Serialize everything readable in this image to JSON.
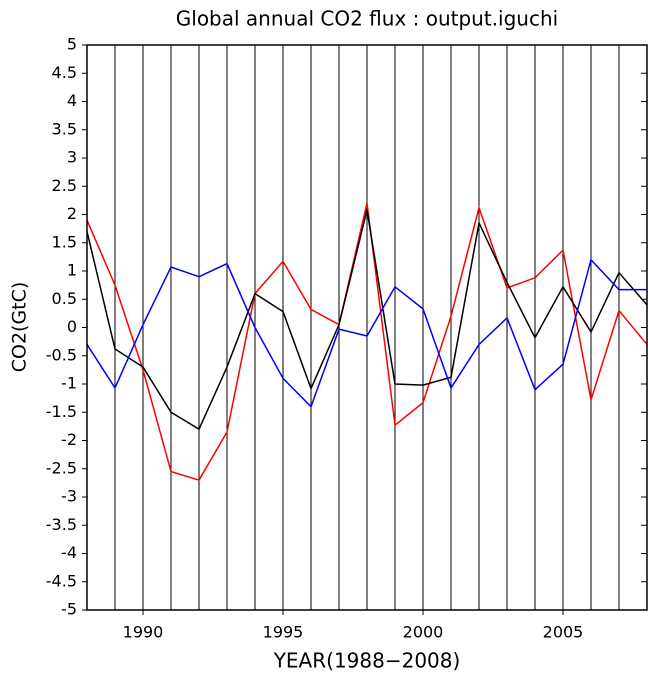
{
  "chart_data": {
    "type": "line",
    "title": "Global annual CO2 flux : output.iguchi",
    "x_label": "YEAR(1988−2008)",
    "y_label": "CO2(GtC)",
    "x": [
      1988,
      1989,
      1990,
      1991,
      1992,
      1993,
      1994,
      1995,
      1996,
      1997,
      1998,
      1999,
      2000,
      2001,
      2002,
      2003,
      2004,
      2005,
      2006,
      2007,
      2008
    ],
    "series": [
      {
        "color": "#ff0000",
        "values": [
          1.9,
          0.75,
          -0.75,
          -2.55,
          -2.7,
          -1.85,
          0.6,
          1.17,
          0.32,
          0.05,
          2.2,
          -1.73,
          -1.33,
          0.2,
          2.12,
          0.7,
          0.88,
          1.37,
          -1.28,
          0.3,
          -0.3
        ]
      },
      {
        "color": "#000000",
        "values": [
          1.7,
          -0.38,
          -0.7,
          -1.5,
          -1.8,
          -0.7,
          0.6,
          0.28,
          -1.08,
          0.05,
          2.08,
          -1.0,
          -1.02,
          -0.88,
          1.85,
          0.8,
          -0.18,
          0.72,
          -0.08,
          0.97,
          0.4
        ]
      },
      {
        "color": "#0000ff",
        "values": [
          -0.3,
          -1.07,
          0.05,
          1.07,
          0.9,
          1.13,
          0.0,
          -0.9,
          -1.4,
          -0.03,
          -0.15,
          0.72,
          0.33,
          -1.07,
          -0.3,
          0.17,
          -1.1,
          -0.65,
          1.2,
          0.67,
          0.67
        ]
      }
    ],
    "xlim": [
      1988,
      2008
    ],
    "xticks": [
      1990,
      1995,
      2000,
      2005
    ],
    "xgrid": [
      1988,
      1989,
      1990,
      1991,
      1992,
      1993,
      1994,
      1995,
      1996,
      1997,
      1998,
      1999,
      2000,
      2001,
      2002,
      2003,
      2004,
      2005,
      2006,
      2007,
      2008
    ],
    "ylim": [
      -5,
      5
    ],
    "yticks": [
      5,
      4.5,
      4,
      3.5,
      3,
      2.5,
      2,
      1.5,
      1,
      0.5,
      0,
      -0.5,
      -1,
      -1.5,
      -2,
      -2.5,
      -3,
      -3.5,
      -4,
      -4.5,
      -5
    ]
  }
}
